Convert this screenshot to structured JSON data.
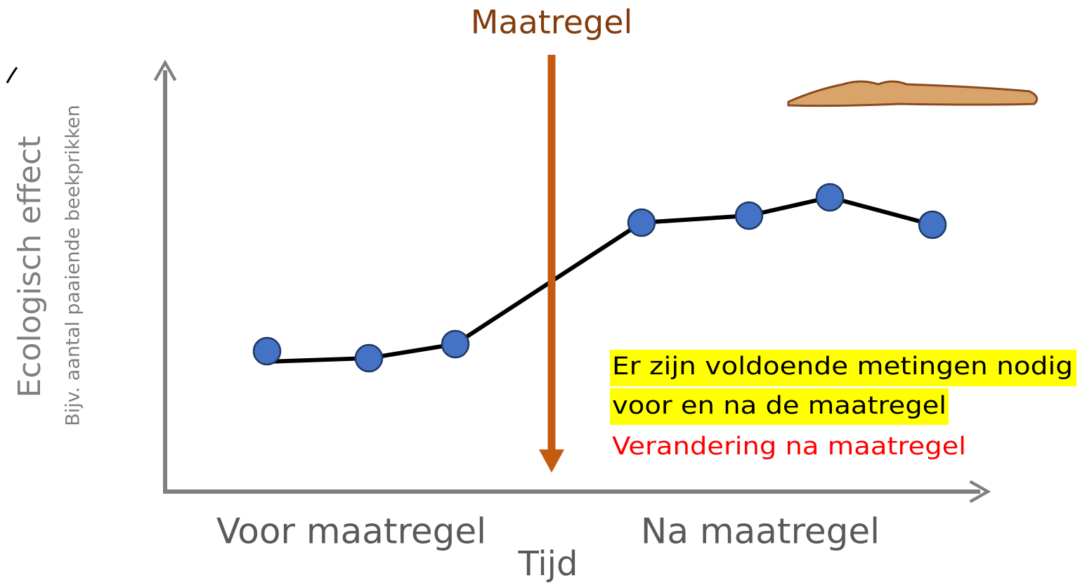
{
  "title": "Maatregel",
  "y_axis": {
    "label": "Ecologisch effect",
    "sublabel": "Bijv. aantal paaiende beekprikken"
  },
  "x_axis": {
    "categories": [
      "Voor maatregel",
      "Na maatregel"
    ],
    "label": "Tijd"
  },
  "note": {
    "lines": [
      "Er zijn voldoende metingen nodig",
      "voor en na de maatregel"
    ],
    "change": "Verandering na maatregel"
  }
}
